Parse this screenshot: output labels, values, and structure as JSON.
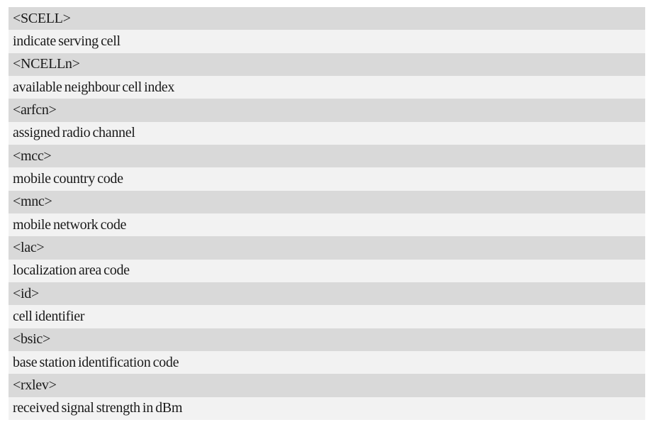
{
  "colors": {
    "page_background": "#ffffff",
    "param_row_background": "#d9d9d9",
    "desc_row_background": "#f2f2f2",
    "text": "#1a1a1a"
  },
  "table": {
    "rows": [
      {
        "type": "param",
        "text": "<SCELL>"
      },
      {
        "type": "desc",
        "text": "indicate serving cell"
      },
      {
        "type": "param",
        "text": "<NCELLn>"
      },
      {
        "type": "desc",
        "text": "available neighbour cell index"
      },
      {
        "type": "param",
        "text": "<arfcn>"
      },
      {
        "type": "desc",
        "text": "assigned radio channel"
      },
      {
        "type": "param",
        "text": "<mcc>"
      },
      {
        "type": "desc",
        "text": "mobile country code"
      },
      {
        "type": "param",
        "text": "<mnc>"
      },
      {
        "type": "desc",
        "text": "mobile network code"
      },
      {
        "type": "param",
        "text": "<lac>"
      },
      {
        "type": "desc",
        "text": "localization area code"
      },
      {
        "type": "param",
        "text": "<id>"
      },
      {
        "type": "desc",
        "text": "cell identifier"
      },
      {
        "type": "param",
        "text": "<bsic>"
      },
      {
        "type": "desc",
        "text": "base station identification code"
      },
      {
        "type": "param",
        "text": "<rxlev>"
      },
      {
        "type": "desc",
        "text": "received signal strength in dBm"
      }
    ]
  }
}
